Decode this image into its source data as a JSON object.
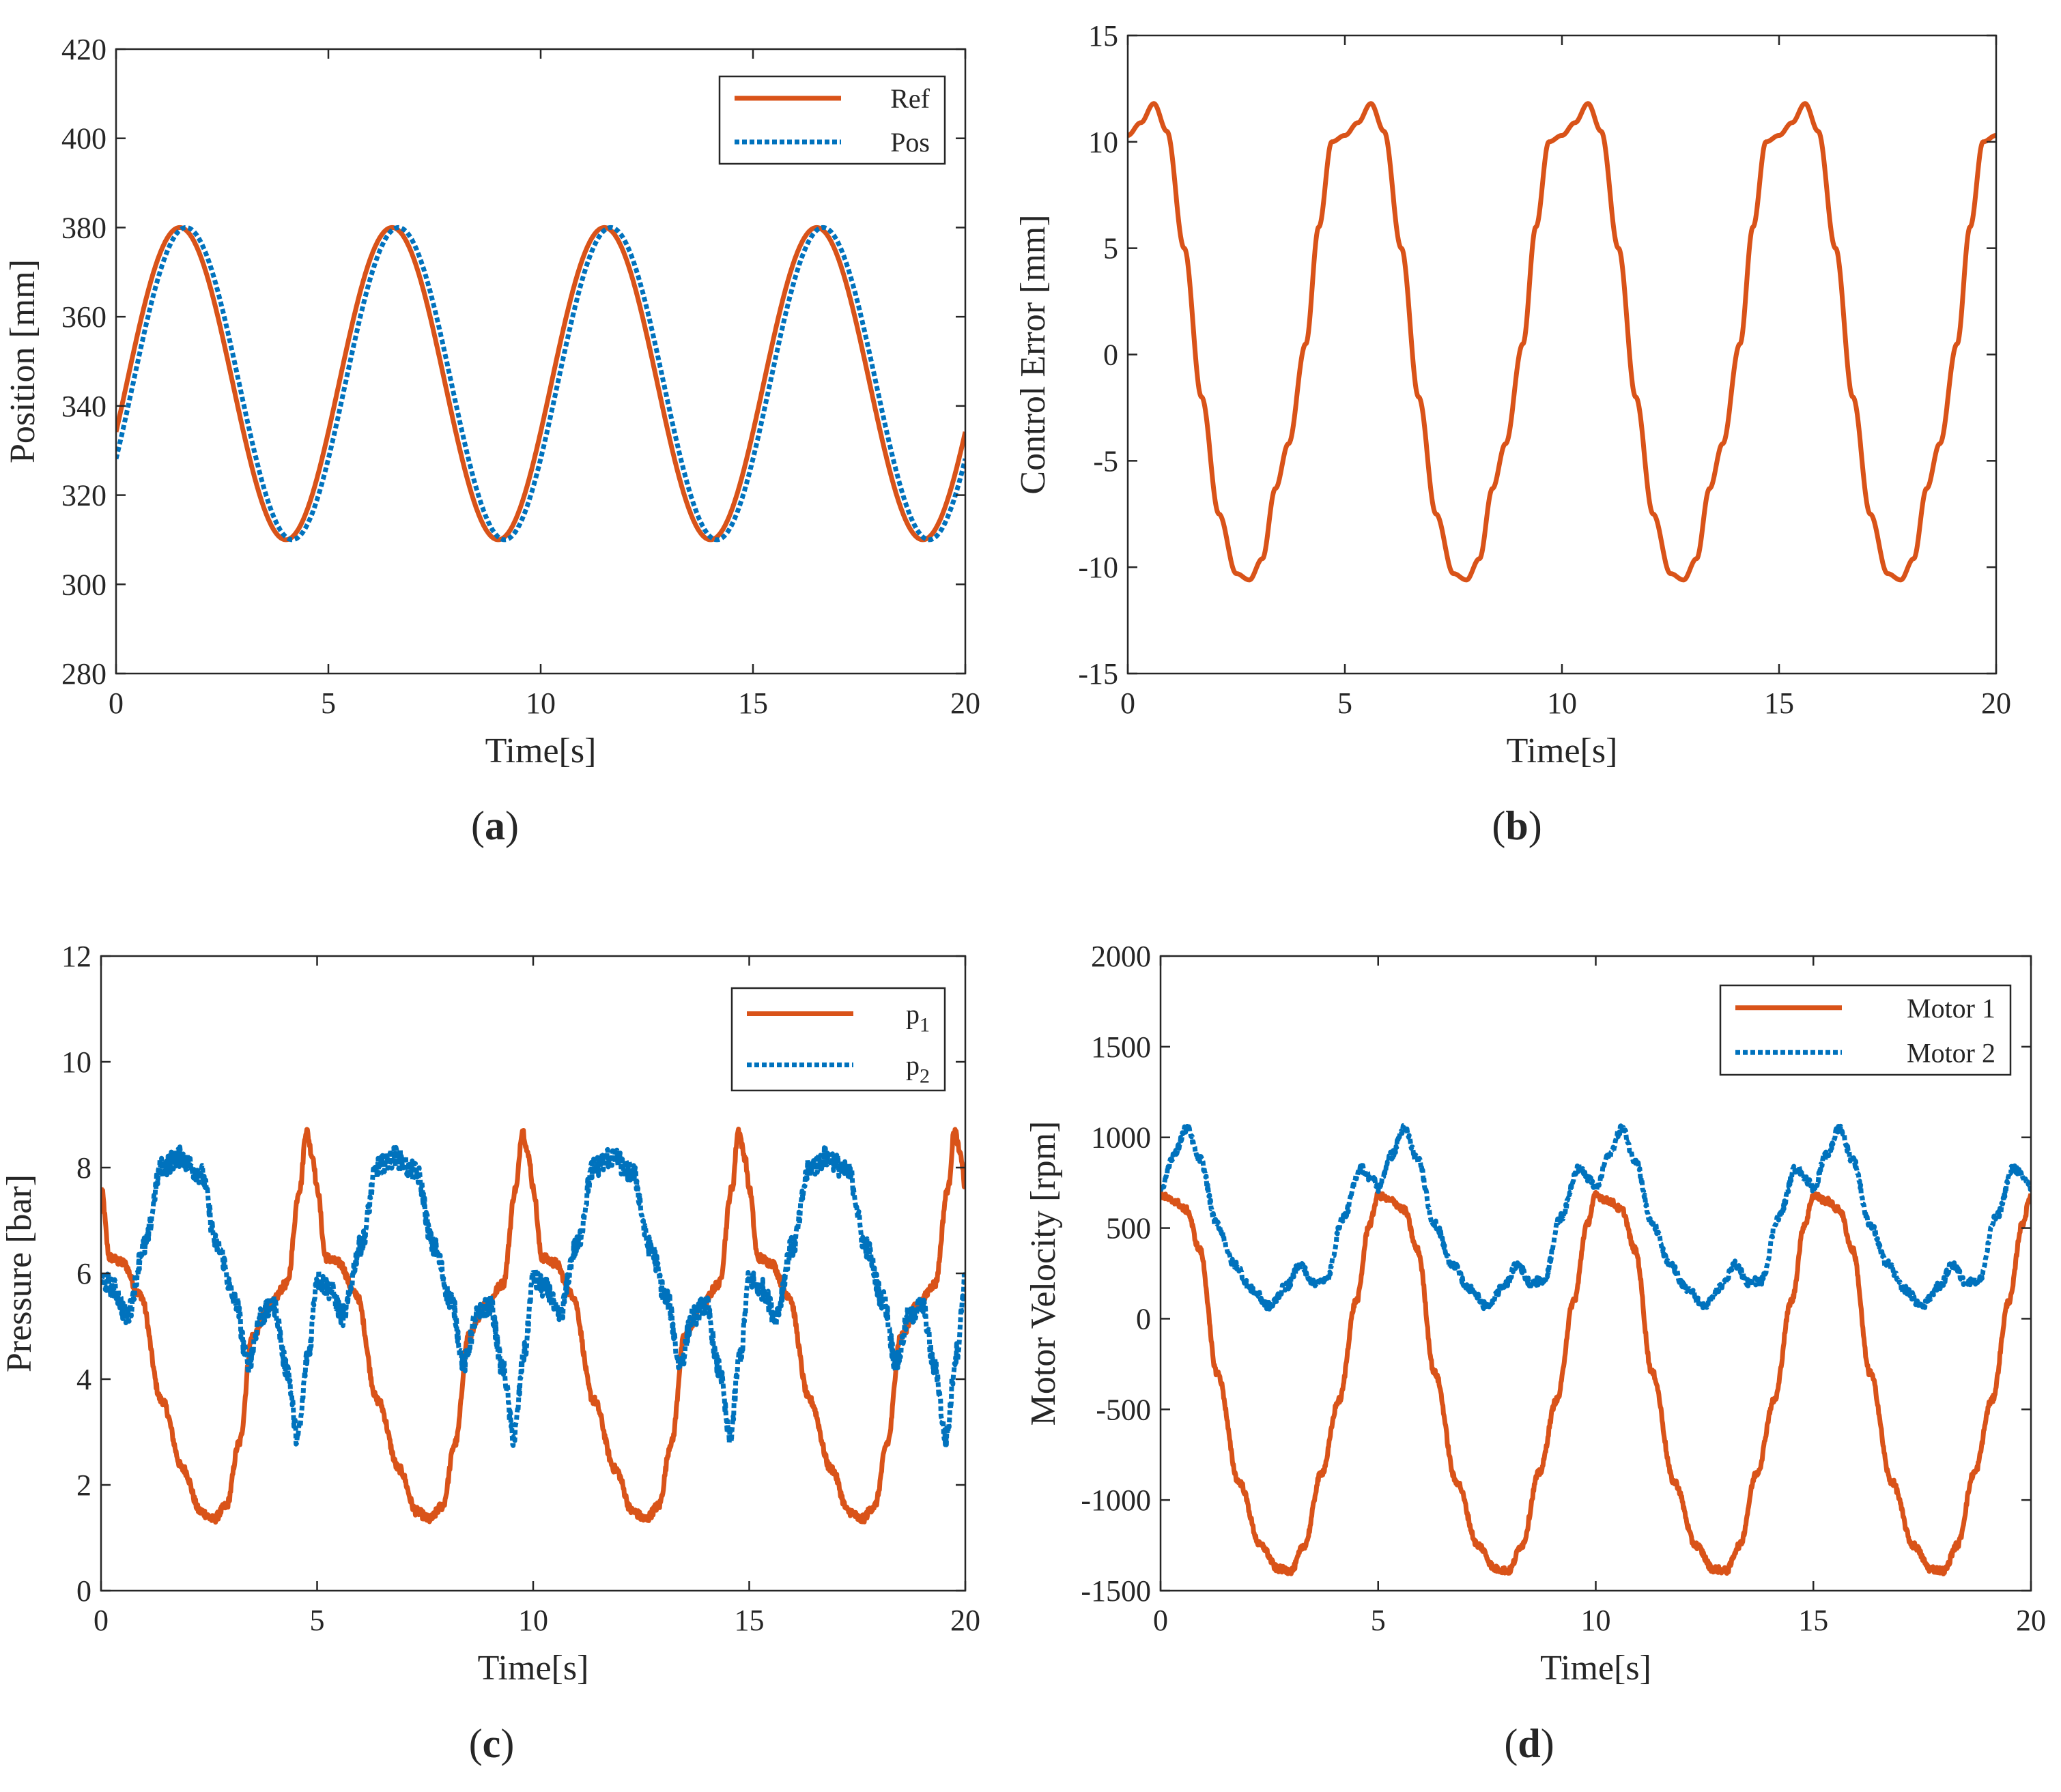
{
  "chart_data": [
    {
      "panel": "a",
      "type": "line",
      "caption_letter": "a",
      "xlabel": "Time[s]",
      "ylabel": "Position [mm]",
      "xlim": [
        0,
        20
      ],
      "ylim": [
        280,
        420
      ],
      "xticks": [
        0,
        5,
        10,
        15,
        20
      ],
      "yticks": [
        280,
        300,
        320,
        340,
        360,
        380,
        400,
        420
      ],
      "legend_position": "top-right",
      "series": [
        {
          "name": "Ref",
          "style": "solid",
          "color": "#D95319",
          "generator": {
            "kind": "sine",
            "offset": 345,
            "amplitude": 35,
            "period": 5,
            "phase_time": 0.25
          }
        },
        {
          "name": "Pos",
          "style": "dotted",
          "color": "#0072BD",
          "generator": {
            "kind": "sine",
            "offset": 345,
            "amplitude": 35,
            "period": 5,
            "phase_time": 0.4
          }
        }
      ]
    },
    {
      "panel": "b",
      "type": "line",
      "caption_letter": "b",
      "xlabel": "Time[s]",
      "ylabel": "Control Error [mm]",
      "xlim": [
        0,
        20
      ],
      "ylim": [
        -15,
        15
      ],
      "xticks": [
        0,
        5,
        10,
        15,
        20
      ],
      "yticks": [
        -15,
        -10,
        -5,
        0,
        5,
        10,
        15
      ],
      "legend_position": "none",
      "series": [
        {
          "name": "Control Error",
          "style": "solid",
          "color": "#D95319",
          "period": 5,
          "x": [
            0,
            0.3,
            0.6,
            0.9,
            1.3,
            1.7,
            2.1,
            2.5,
            2.8,
            3.1,
            3.4,
            3.7,
            4.1,
            4.4,
            4.7,
            5.0
          ],
          "y": [
            10.3,
            10.9,
            11.8,
            10.5,
            5.0,
            -2.0,
            -7.5,
            -10.3,
            -10.6,
            -9.6,
            -6.3,
            -4.2,
            0.5,
            6.0,
            10.0,
            10.3
          ]
        }
      ]
    },
    {
      "panel": "c",
      "type": "line",
      "caption_letter": "c",
      "xlabel": "Time[s]",
      "ylabel": "Pressure [bar]",
      "xlim": [
        0,
        20
      ],
      "ylim": [
        0,
        12
      ],
      "xticks": [
        0,
        5,
        10,
        15,
        20
      ],
      "yticks": [
        0,
        2,
        4,
        6,
        8,
        10,
        12
      ],
      "legend_position": "top-right",
      "series": [
        {
          "name": "p",
          "subscript": "1",
          "style": "solid",
          "color": "#D95319",
          "period": 5,
          "noise": 0.08,
          "x": [
            0,
            0.2,
            0.5,
            0.9,
            1.4,
            1.9,
            2.3,
            2.6,
            2.9,
            3.2,
            3.5,
            3.9,
            4.3,
            4.6,
            4.75,
            4.9,
            5.0
          ],
          "y": [
            7.6,
            6.3,
            6.2,
            5.6,
            3.6,
            2.3,
            1.5,
            1.35,
            1.6,
            2.8,
            4.8,
            5.4,
            5.8,
            7.6,
            8.7,
            8.2,
            7.6
          ]
        },
        {
          "name": "p",
          "subscript": "2",
          "style": "dotted",
          "color": "#0072BD",
          "period": 5,
          "noise": 0.2,
          "x": [
            0,
            0.3,
            0.6,
            1.0,
            1.4,
            1.8,
            2.3,
            2.7,
            3.1,
            3.4,
            3.7,
            4.0,
            4.3,
            4.55,
            4.8,
            5.0
          ],
          "y": [
            5.9,
            5.7,
            5.2,
            6.5,
            8.0,
            8.2,
            7.9,
            6.5,
            5.5,
            4.3,
            5.2,
            5.4,
            4.2,
            2.9,
            4.5,
            5.9
          ]
        }
      ]
    },
    {
      "panel": "d",
      "type": "line",
      "caption_letter": "d",
      "xlabel": "Time[s]",
      "ylabel": "Motor Velocity [rpm]",
      "xlim": [
        0,
        20
      ],
      "ylim": [
        -1500,
        2000
      ],
      "xticks": [
        0,
        5,
        10,
        15,
        20
      ],
      "yticks": [
        -1500,
        -1000,
        -500,
        0,
        500,
        1000,
        1500,
        2000
      ],
      "legend_position": "top-right",
      "series": [
        {
          "name": "Motor 1",
          "style": "solid",
          "color": "#D95319",
          "period": 5,
          "noise": 18,
          "x": [
            0,
            0.3,
            0.6,
            0.9,
            1.3,
            1.8,
            2.3,
            2.7,
            3.0,
            3.3,
            3.7,
            4.1,
            4.5,
            4.8,
            5.0
          ],
          "y": [
            680,
            650,
            600,
            380,
            -300,
            -900,
            -1250,
            -1380,
            -1390,
            -1250,
            -850,
            -450,
            100,
            520,
            680
          ]
        },
        {
          "name": "Motor 2",
          "style": "dotted",
          "color": "#0072BD",
          "period": 5,
          "noise": 22,
          "x": [
            0,
            0.3,
            0.6,
            0.9,
            1.3,
            1.7,
            2.1,
            2.5,
            2.9,
            3.2,
            3.5,
            3.8,
            4.2,
            4.6,
            4.9,
            5.0
          ],
          "y": [
            720,
            900,
            1050,
            880,
            520,
            300,
            160,
            70,
            180,
            300,
            200,
            210,
            560,
            830,
            760,
            720
          ]
        }
      ]
    }
  ]
}
